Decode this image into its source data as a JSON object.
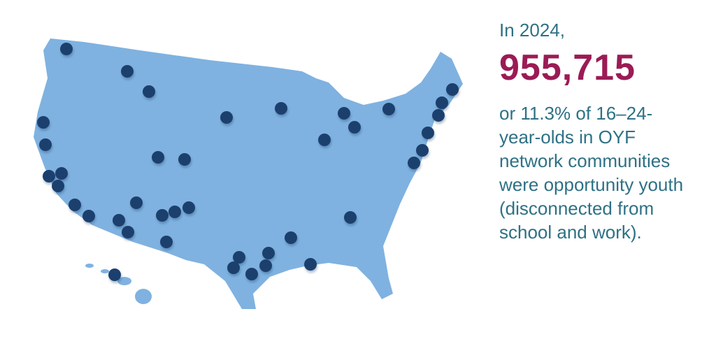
{
  "intro": "In 2024,",
  "headline": "955,715",
  "description": "or 11.3% of 16–24-year-olds in OYF network communities were opportunity youth (disconnected from school and work)."
}
